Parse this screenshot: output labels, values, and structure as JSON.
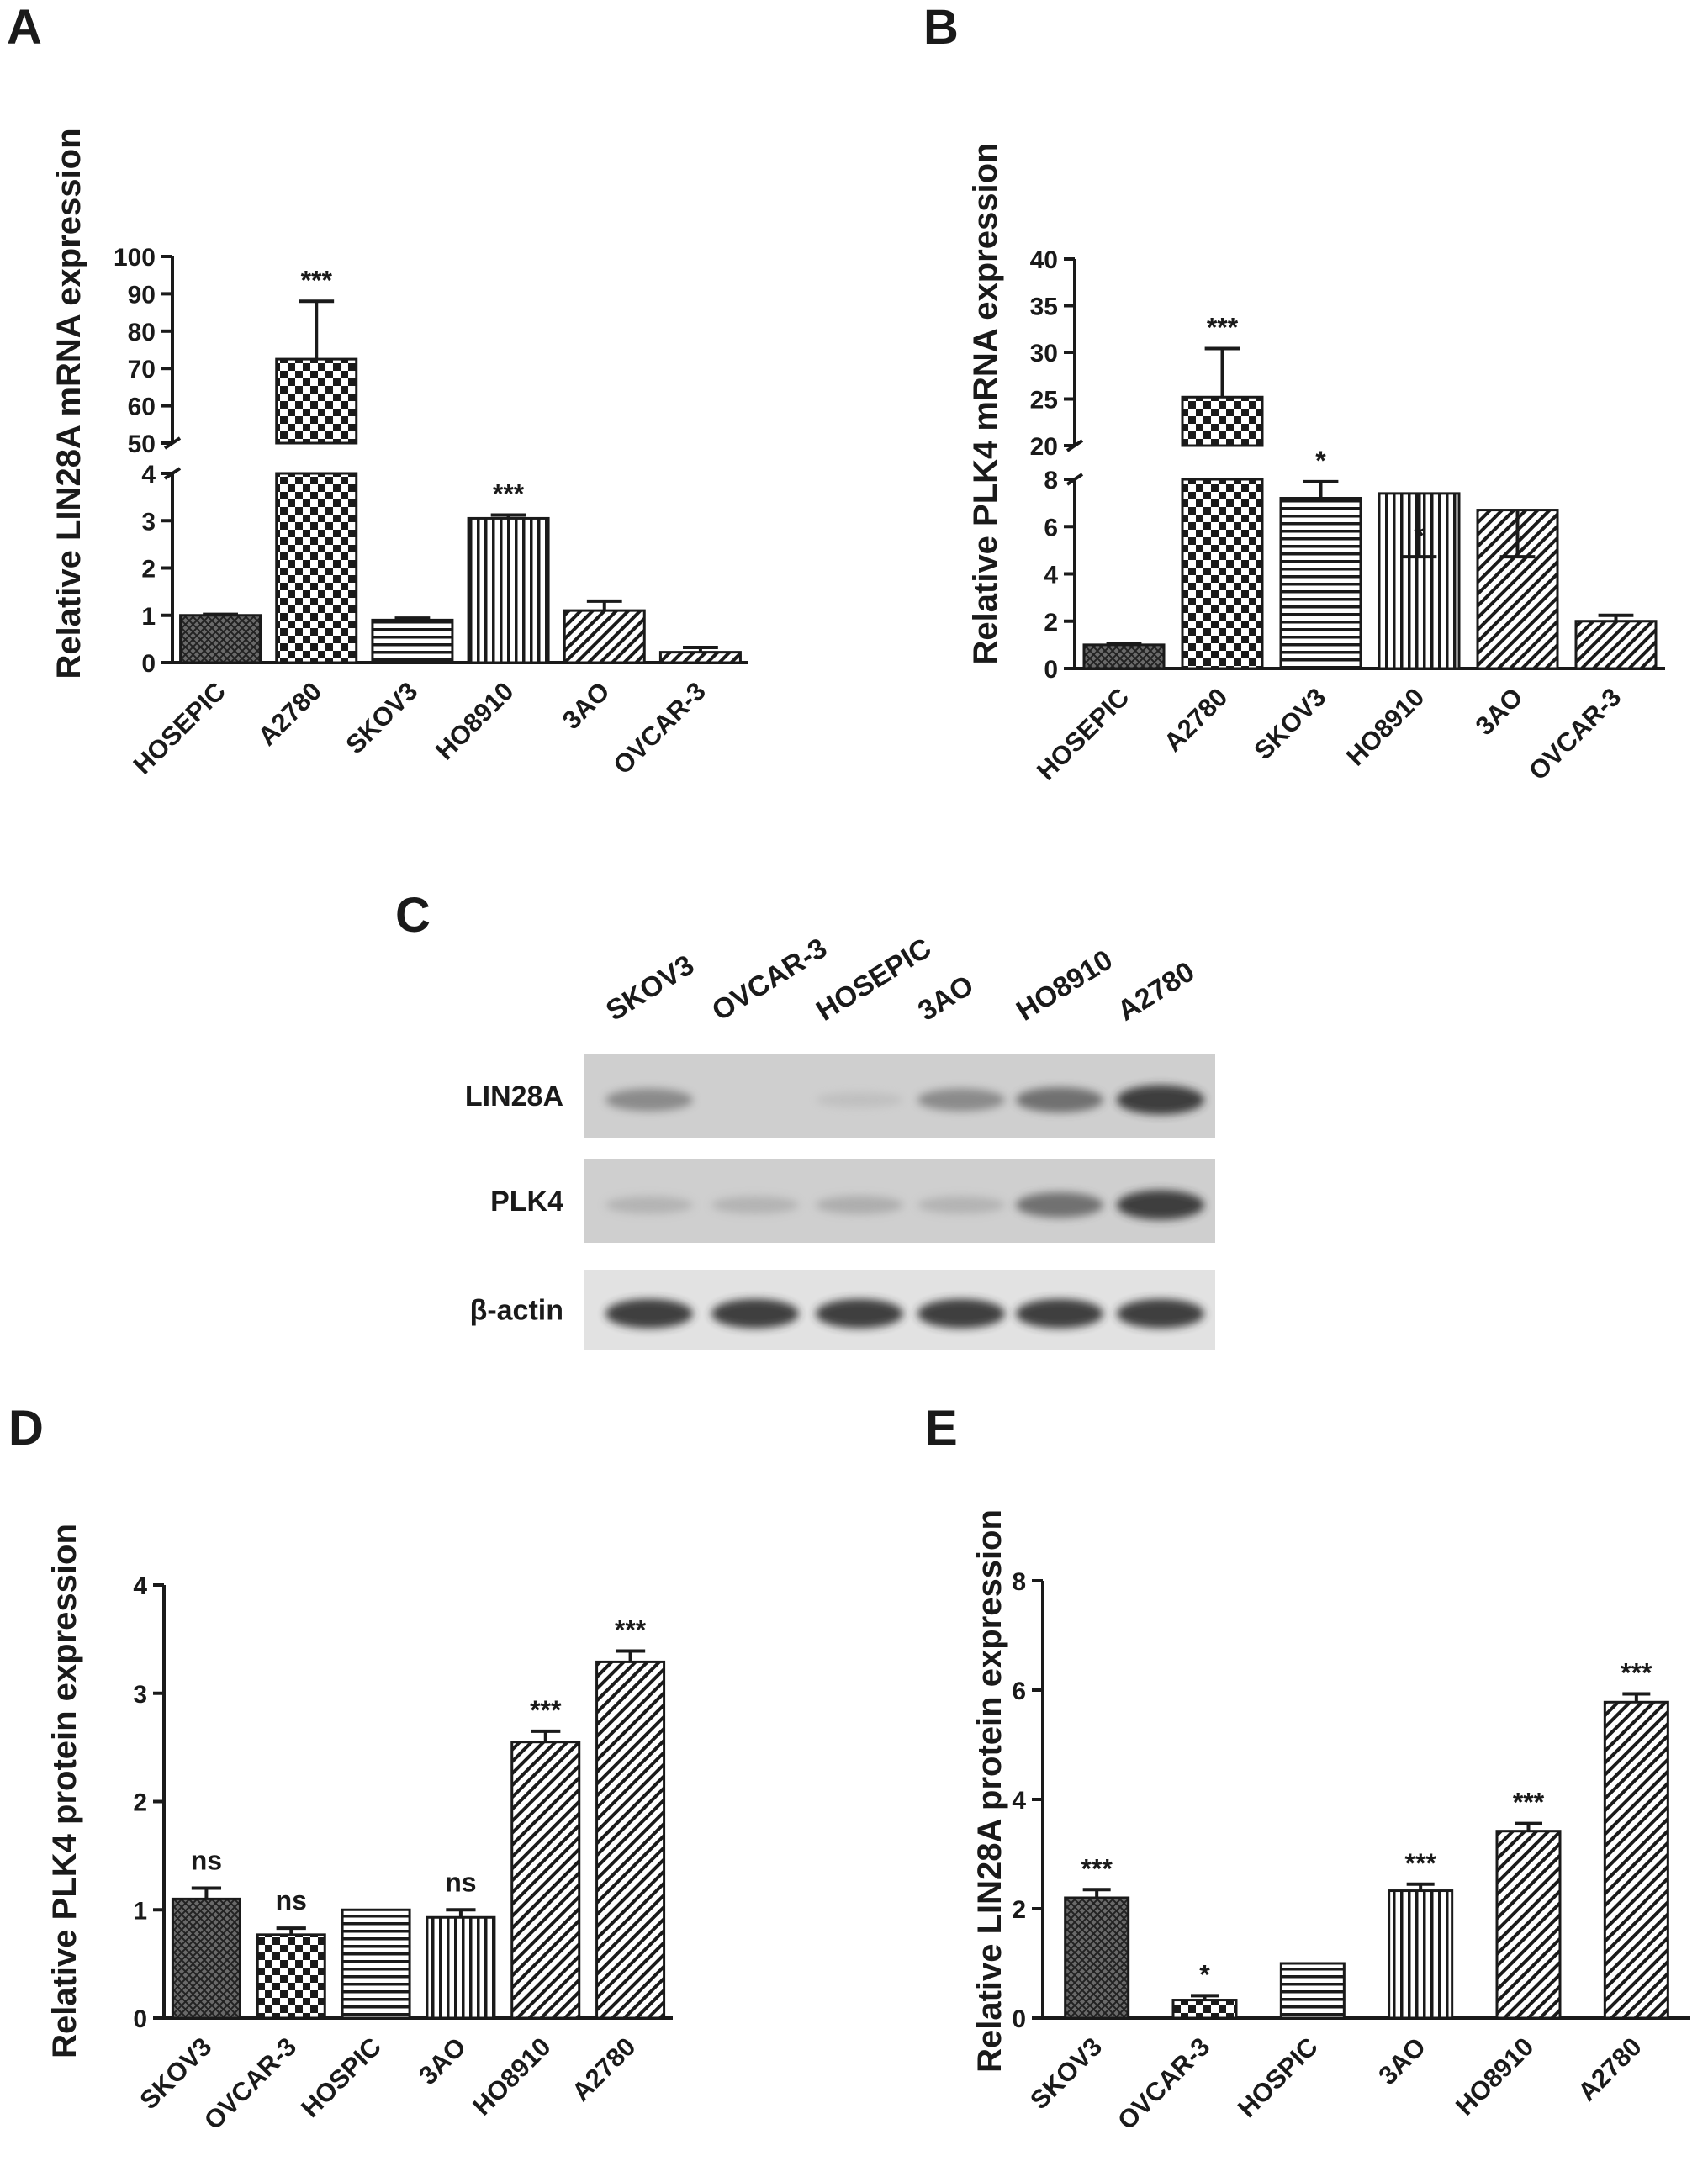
{
  "colors": {
    "ink": "#1a1a1a",
    "bar_outline": "#1a1a1a",
    "background": "#ffffff"
  },
  "panels": {
    "A": {
      "letter": "A"
    },
    "B": {
      "letter": "B"
    },
    "C": {
      "letter": "C"
    },
    "D": {
      "letter": "D"
    },
    "E": {
      "letter": "E"
    }
  },
  "blot": {
    "lanes": [
      "SKOV3",
      "OVCAR-3",
      "HOSEPIC",
      "3AO",
      "HO8910",
      "A2780"
    ],
    "rows": [
      {
        "label": "LIN28A",
        "intensity": [
          0.55,
          0.0,
          0.12,
          0.55,
          0.7,
          0.95
        ]
      },
      {
        "label": "PLK4",
        "intensity": [
          0.25,
          0.25,
          0.3,
          0.25,
          0.7,
          0.95
        ]
      },
      {
        "label": "β-actin",
        "intensity": [
          0.95,
          0.95,
          0.95,
          0.95,
          0.95,
          0.95
        ]
      }
    ]
  },
  "chart_data": [
    {
      "panel": "A",
      "type": "bar",
      "ylabel": "Relative LIN28A mRNA expression",
      "y_axis_break": true,
      "ylim_lower": [
        0,
        4
      ],
      "ylim_upper": [
        50,
        100
      ],
      "yticks_lower": [
        "0",
        "1",
        "2",
        "3",
        "4"
      ],
      "yticks_upper": [
        "50",
        "60",
        "70",
        "80",
        "90",
        "100"
      ],
      "categories": [
        "HOSEPIC",
        "A2780",
        "SKOV3",
        "HO8910",
        "3AO",
        "OVCAR-3"
      ],
      "values": [
        1.0,
        72.5,
        0.9,
        3.05,
        1.1,
        0.22
      ],
      "errors": [
        0.02,
        15.5,
        0.04,
        0.07,
        0.2,
        0.1
      ],
      "patterns": [
        "cross",
        "checker",
        "hlines",
        "vlines",
        "diag",
        "diag"
      ],
      "significance": [
        "",
        "***",
        "",
        "***",
        "",
        ""
      ]
    },
    {
      "panel": "B",
      "type": "bar",
      "ylabel": "Relative PLK4 mRNA expression",
      "y_axis_break": true,
      "ylim_lower": [
        0,
        8
      ],
      "ylim_upper": [
        20,
        40
      ],
      "yticks_lower": [
        "0",
        "2",
        "4",
        "6",
        "8"
      ],
      "yticks_upper": [
        "20",
        "25",
        "30",
        "35",
        "40"
      ],
      "categories": [
        "HOSEPIC",
        "A2780",
        "SKOV3",
        "HO8910",
        "3AO",
        "OVCAR-3"
      ],
      "values": [
        1.0,
        25.2,
        7.2,
        7.4,
        6.7,
        2.0
      ],
      "errors": [
        0.05,
        5.2,
        0.7,
        0.7,
        1.4,
        0.25
      ],
      "patterns": [
        "cross",
        "checker",
        "hlines",
        "vlines",
        "diag",
        "diag"
      ],
      "significance": [
        "",
        "***",
        "*",
        "*",
        "",
        ""
      ]
    },
    {
      "panel": "D",
      "type": "bar",
      "ylabel": "Relative PLK4 protein expression",
      "ylim": [
        0,
        4
      ],
      "yticks": [
        "0",
        "1",
        "2",
        "3",
        "4"
      ],
      "categories": [
        "SKOV3",
        "OVCAR-3",
        "HOSPIC",
        "3AO",
        "HO8910",
        "A2780"
      ],
      "values": [
        1.1,
        0.77,
        1.0,
        0.93,
        2.55,
        3.29
      ],
      "errors": [
        0.1,
        0.06,
        0.0,
        0.07,
        0.1,
        0.1
      ],
      "patterns": [
        "cross",
        "checker",
        "hlines",
        "vlines",
        "diag",
        "diag"
      ],
      "significance": [
        "ns",
        "ns",
        "",
        "ns",
        "***",
        "***"
      ]
    },
    {
      "panel": "E",
      "type": "bar",
      "ylabel": "Relative LIN28A protein expression",
      "ylim": [
        0,
        8
      ],
      "yticks": [
        "0",
        "2",
        "4",
        "6",
        "8"
      ],
      "categories": [
        "SKOV3",
        "OVCAR-3",
        "HOSPIC",
        "3AO",
        "HO8910",
        "A2780"
      ],
      "values": [
        2.2,
        0.33,
        1.0,
        2.33,
        3.42,
        5.78
      ],
      "errors": [
        0.15,
        0.08,
        0.0,
        0.12,
        0.14,
        0.15
      ],
      "patterns": [
        "cross",
        "checker",
        "hlines",
        "vlines",
        "diag",
        "diag"
      ],
      "significance": [
        "***",
        "*",
        "",
        "***",
        "***",
        "***"
      ]
    }
  ]
}
